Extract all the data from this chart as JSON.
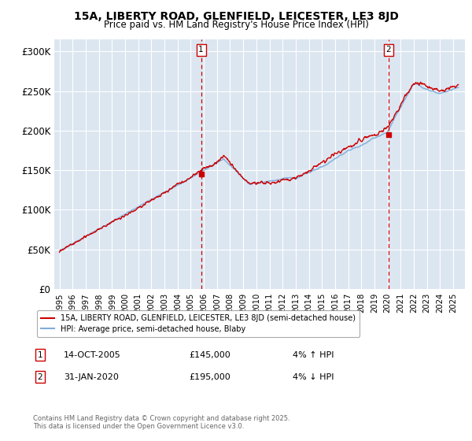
{
  "title_line1": "15A, LIBERTY ROAD, GLENFIELD, LEICESTER, LE3 8JD",
  "title_line2": "Price paid vs. HM Land Registry's House Price Index (HPI)",
  "plot_bg_color": "#dce6f1",
  "yticks": [
    0,
    50000,
    100000,
    150000,
    200000,
    250000,
    300000
  ],
  "ytick_labels": [
    "£0",
    "£50K",
    "£100K",
    "£150K",
    "£200K",
    "£250K",
    "£300K"
  ],
  "ylim": [
    0,
    315000
  ],
  "hpi_color": "#7faedc",
  "property_color": "#cc0000",
  "marker1_date": 2005.79,
  "marker1_value": 145000,
  "marker2_date": 2020.08,
  "marker2_value": 195000,
  "legend_property": "15A, LIBERTY ROAD, GLENFIELD, LEICESTER, LE3 8JD (semi-detached house)",
  "legend_hpi": "HPI: Average price, semi-detached house, Blaby",
  "annotation1_num": "1",
  "annotation1_date": "14-OCT-2005",
  "annotation1_price": "£145,000",
  "annotation1_hpi": "4% ↑ HPI",
  "annotation2_num": "2",
  "annotation2_date": "31-JAN-2020",
  "annotation2_price": "£195,000",
  "annotation2_hpi": "4% ↓ HPI",
  "footer": "Contains HM Land Registry data © Crown copyright and database right 2025.\nThis data is licensed under the Open Government Licence v3.0."
}
